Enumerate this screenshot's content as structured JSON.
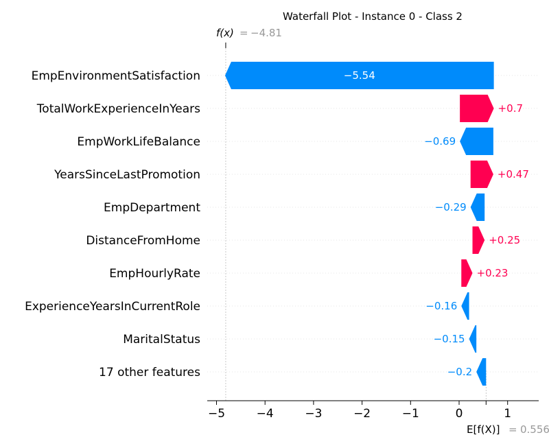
{
  "chart_data": {
    "type": "waterfall",
    "title": "Waterfall Plot - Instance 0 - Class 2",
    "fx_label": "f(x)",
    "fx_value": "−4.81",
    "ex_label": "E[f(X)]",
    "ex_value": "0.556",
    "base_value": 0.556,
    "output_value": -4.81,
    "xlim": [
      -5.2,
      1.7
    ],
    "x_ticks": [
      {
        "value": -5,
        "label": "−5"
      },
      {
        "value": -4,
        "label": "−4"
      },
      {
        "value": -3,
        "label": "−3"
      },
      {
        "value": -2,
        "label": "−2"
      },
      {
        "value": -1,
        "label": "−1"
      },
      {
        "value": 0,
        "label": "0"
      },
      {
        "value": 1,
        "label": "1"
      }
    ],
    "features": [
      {
        "name": "EmpEnvironmentSatisfaction",
        "value": -5.54,
        "label": "−5.54"
      },
      {
        "name": "TotalWorkExperienceInYears",
        "value": 0.7,
        "label": "+0.7"
      },
      {
        "name": "EmpWorkLifeBalance",
        "value": -0.69,
        "label": "−0.69"
      },
      {
        "name": "YearsSinceLastPromotion",
        "value": 0.47,
        "label": "+0.47"
      },
      {
        "name": "EmpDepartment",
        "value": -0.29,
        "label": "−0.29"
      },
      {
        "name": "DistanceFromHome",
        "value": 0.25,
        "label": "+0.25"
      },
      {
        "name": "EmpHourlyRate",
        "value": 0.23,
        "label": "+0.23"
      },
      {
        "name": "ExperienceYearsInCurrentRole",
        "value": -0.16,
        "label": "−0.16"
      },
      {
        "name": "MaritalStatus",
        "value": -0.15,
        "label": "−0.15"
      },
      {
        "name": "17 other features",
        "value": -0.2,
        "label": "−0.2"
      }
    ],
    "colors": {
      "positive": "#ff0051",
      "negative": "#008bfb",
      "axis": "#000000",
      "grid": "#cccccc",
      "muted": "#999999"
    }
  }
}
